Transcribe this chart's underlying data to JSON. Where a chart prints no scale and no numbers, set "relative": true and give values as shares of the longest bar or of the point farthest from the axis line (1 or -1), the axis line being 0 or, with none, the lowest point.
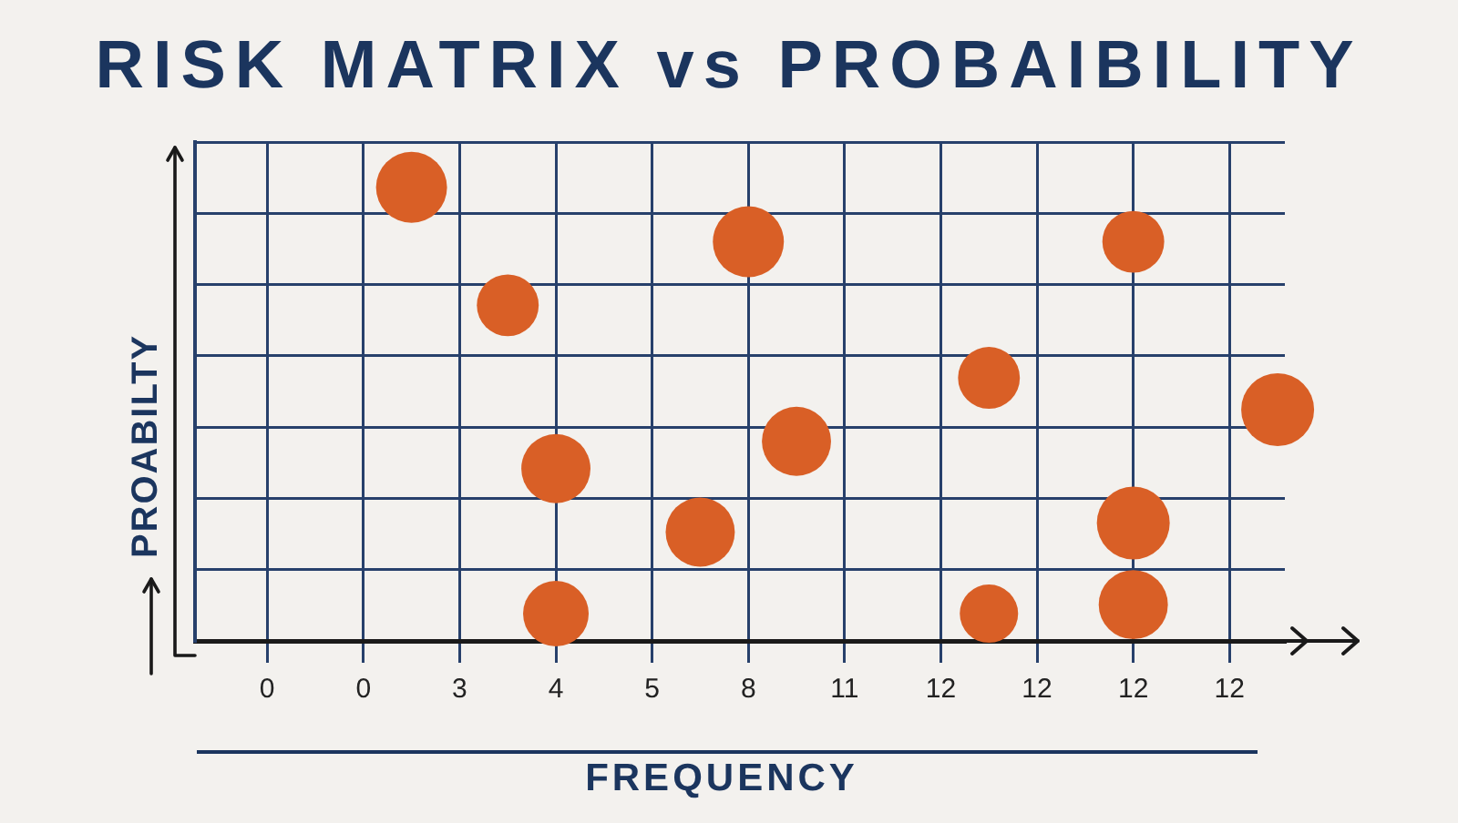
{
  "chart_data": {
    "type": "bubble",
    "title": "RISK MATRIX vs PROBAIBILITY",
    "xlabel": "FREQUENCY",
    "ylabel": "PROABILTY",
    "relative": true,
    "grid": true,
    "categories": [
      "0",
      null,
      "0",
      null,
      "3",
      null,
      "4",
      null,
      "5",
      null,
      "8",
      null,
      "11",
      null,
      "12",
      null,
      "12",
      null,
      "12",
      null,
      "12",
      null
    ],
    "series": [
      {
        "color": "#d95f26",
        "values": [
          null,
          null,
          null,
          1,
          null,
          0.74,
          0.38,
          null,
          null,
          0.24,
          0.88,
          0.44,
          null,
          null,
          null,
          0.58,
          null,
          null,
          0.88,
          null,
          null,
          0.51
        ],
        "sizes": [
          null,
          null,
          null,
          0.95,
          null,
          0.72,
          0.9,
          null,
          null,
          0.9,
          0.95,
          0.9,
          null,
          null,
          null,
          0.72,
          null,
          null,
          0.72,
          null,
          null,
          1
        ]
      },
      {
        "color": "#d95f26",
        "values": [
          null,
          null,
          null,
          null,
          null,
          null,
          0.06,
          null,
          null,
          null,
          null,
          null,
          null,
          null,
          null,
          0.06,
          null,
          null,
          0.26,
          null,
          null,
          null
        ],
        "sizes": [
          null,
          null,
          null,
          null,
          null,
          null,
          0.81,
          null,
          null,
          null,
          null,
          null,
          null,
          null,
          null,
          0.64,
          null,
          null,
          1,
          null,
          null,
          null
        ]
      },
      {
        "color": "#d95f26",
        "values": [
          null,
          null,
          null,
          null,
          null,
          null,
          null,
          null,
          null,
          null,
          null,
          null,
          null,
          null,
          null,
          null,
          null,
          null,
          0.08,
          null,
          null,
          null
        ],
        "sizes": [
          null,
          null,
          null,
          null,
          null,
          null,
          null,
          null,
          null,
          null,
          null,
          null,
          null,
          null,
          null,
          null,
          null,
          null,
          0.9,
          null,
          null,
          null
        ]
      }
    ]
  }
}
